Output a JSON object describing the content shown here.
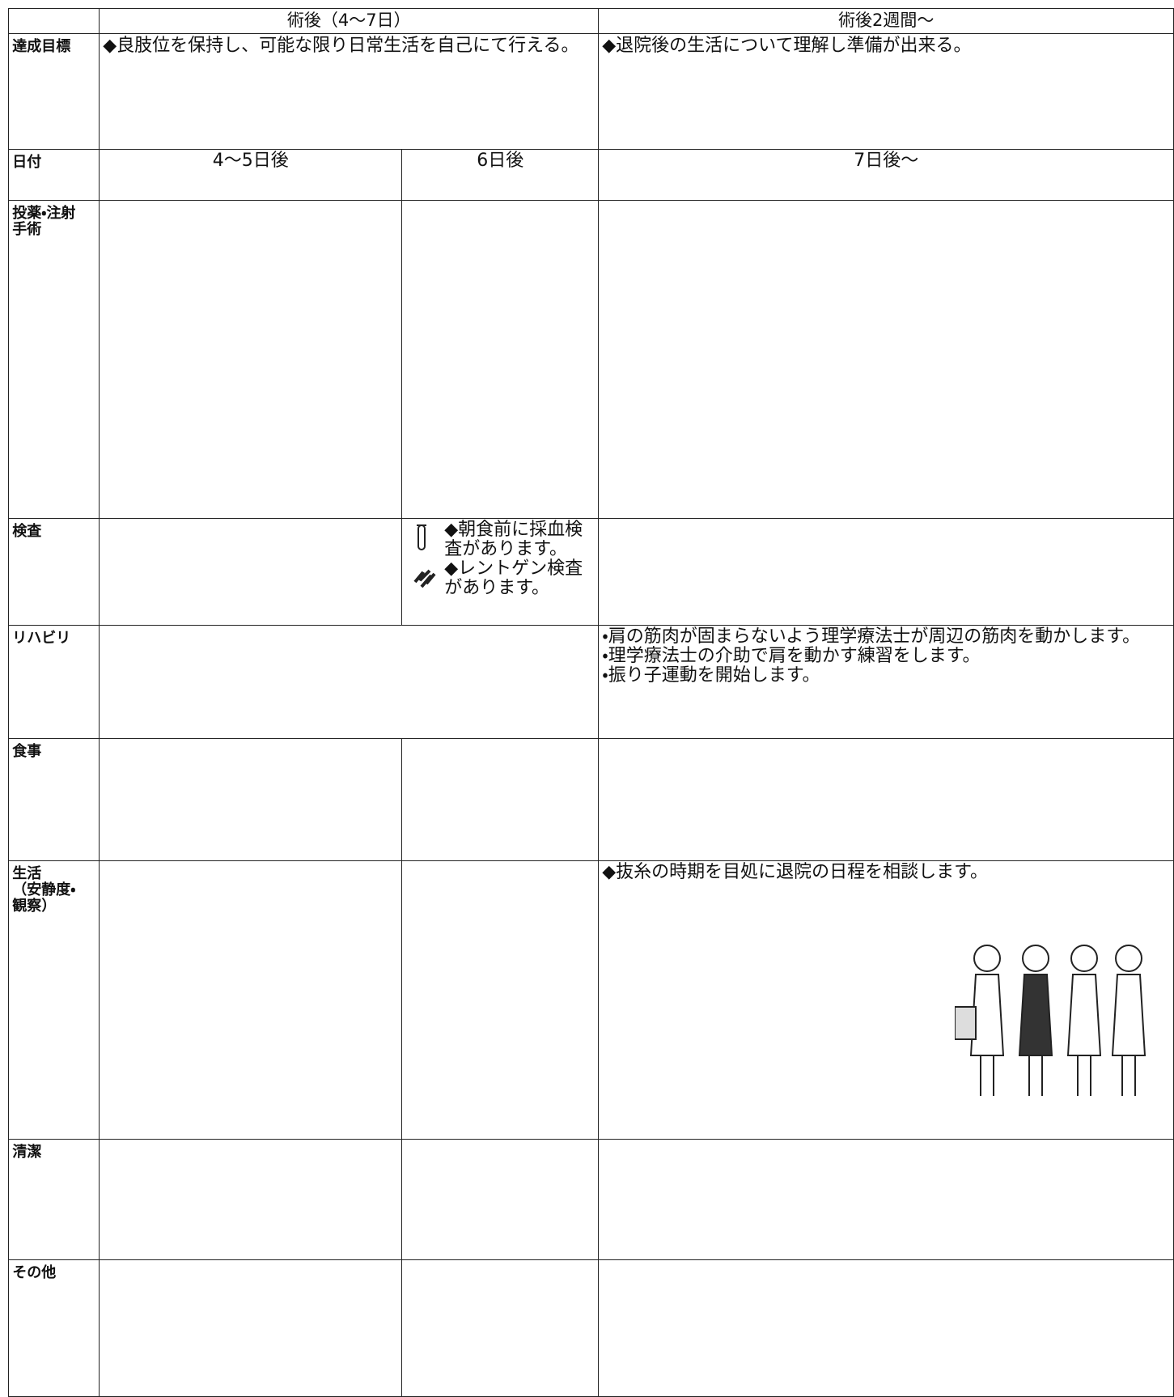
{
  "header": {
    "period_1": "術後（4〜7日）",
    "period_2": "術後2週間〜"
  },
  "goals": {
    "label": "達成目標",
    "period_1": "◆良肢位を保持し、可能な限り日常生活を自己にて行える。",
    "period_2": "◆退院後の生活について理解し準備が出来る。"
  },
  "dates": {
    "label": "日付",
    "day_4_5": "4〜5日後",
    "day_6": "6日後",
    "day_7": "7日後〜"
  },
  "rows": [
    {
      "label": [
        "投薬・注射",
        "手術"
      ]
    },
    {
      "label": [
        "検査"
      ],
      "day_6": [
        "◆朝食前に採血検査があります。",
        "◆レントゲン検査があります。"
      ]
    },
    {
      "label": [
        "リハビリ"
      ],
      "day_7": [
        "・肩の筋肉が固まらないよう理学療法士が周辺の筋肉を動かします。",
        "・理学療法士の介助で肩を動かす練習をします。",
        "・振り子運動を開始します。"
      ]
    },
    {
      "label": [
        "食事"
      ]
    },
    {
      "label": [
        "生活",
        "（安静度・",
        "観察）"
      ],
      "day_7": [
        "◆抜糸の時期を目処に退院の日程を相談します。"
      ]
    },
    {
      "label": [
        "清潔"
      ]
    },
    {
      "label": [
        "その他"
      ]
    }
  ]
}
